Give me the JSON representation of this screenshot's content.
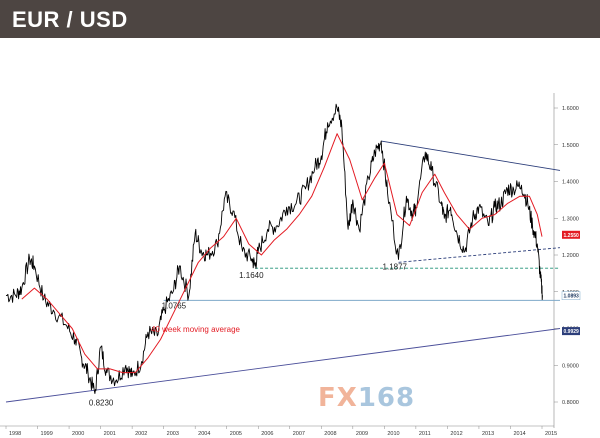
{
  "header": {
    "title": "EUR / USD"
  },
  "watermark": {
    "part1": "FX",
    "part2": "168"
  },
  "chart_data": {
    "type": "line",
    "title": "EUR / USD",
    "x_range": [
      1998,
      2015
    ],
    "y_range": [
      0.75,
      1.65
    ],
    "grid": false,
    "x_ticks": [
      "1998",
      "1999",
      "2000",
      "2001",
      "2002",
      "2003",
      "2004",
      "2005",
      "2006",
      "2007",
      "2008",
      "2009",
      "2010",
      "2011",
      "2012",
      "2013",
      "2014",
      "2015"
    ],
    "y_ticks": [
      "1.6000",
      "1.5000",
      "1.4000",
      "1.3000",
      "1.2000",
      "1.1000",
      "1.0000",
      "0.9000",
      "0.8000"
    ],
    "series": [
      {
        "role": "price",
        "color": "#000000",
        "points": [
          [
            1998.0,
            1.09
          ],
          [
            1998.3,
            1.09
          ],
          [
            1998.5,
            1.11
          ],
          [
            1998.75,
            1.19
          ],
          [
            1998.9,
            1.17
          ],
          [
            1999.2,
            1.08
          ],
          [
            1999.5,
            1.05
          ],
          [
            1999.9,
            1.01
          ],
          [
            2000.2,
            0.97
          ],
          [
            2000.4,
            0.92
          ],
          [
            2000.6,
            0.88
          ],
          [
            2000.82,
            0.823
          ],
          [
            2001.0,
            0.95
          ],
          [
            2001.2,
            0.88
          ],
          [
            2001.5,
            0.86
          ],
          [
            2001.8,
            0.9
          ],
          [
            2002.0,
            0.87
          ],
          [
            2002.3,
            0.91
          ],
          [
            2002.5,
            0.99
          ],
          [
            2002.8,
            0.98
          ],
          [
            2003.0,
            1.05
          ],
          [
            2003.3,
            1.1
          ],
          [
            2003.5,
            1.17
          ],
          [
            2003.8,
            1.09
          ],
          [
            2004.0,
            1.26
          ],
          [
            2004.2,
            1.21
          ],
          [
            2004.4,
            1.2
          ],
          [
            2004.7,
            1.23
          ],
          [
            2004.95,
            1.36
          ],
          [
            2005.2,
            1.32
          ],
          [
            2005.5,
            1.21
          ],
          [
            2005.8,
            1.19
          ],
          [
            2005.9,
            1.17
          ],
          [
            2006.0,
            1.21
          ],
          [
            2006.3,
            1.27
          ],
          [
            2006.6,
            1.28
          ],
          [
            2006.9,
            1.33
          ],
          [
            2007.2,
            1.34
          ],
          [
            2007.5,
            1.38
          ],
          [
            2007.8,
            1.44
          ],
          [
            2008.0,
            1.47
          ],
          [
            2008.2,
            1.56
          ],
          [
            2008.5,
            1.6
          ],
          [
            2008.65,
            1.55
          ],
          [
            2008.85,
            1.27
          ],
          [
            2009.0,
            1.35
          ],
          [
            2009.2,
            1.27
          ],
          [
            2009.5,
            1.41
          ],
          [
            2009.7,
            1.48
          ],
          [
            2009.9,
            1.51
          ],
          [
            2010.1,
            1.37
          ],
          [
            2010.45,
            1.1877
          ],
          [
            2010.7,
            1.36
          ],
          [
            2010.9,
            1.31
          ],
          [
            2011.0,
            1.33
          ],
          [
            2011.3,
            1.48
          ],
          [
            2011.5,
            1.43
          ],
          [
            2011.8,
            1.34
          ],
          [
            2011.9,
            1.3
          ],
          [
            2012.1,
            1.33
          ],
          [
            2012.3,
            1.26
          ],
          [
            2012.55,
            1.21
          ],
          [
            2012.8,
            1.3
          ],
          [
            2013.0,
            1.33
          ],
          [
            2013.3,
            1.28
          ],
          [
            2013.5,
            1.33
          ],
          [
            2013.7,
            1.34
          ],
          [
            2013.9,
            1.38
          ],
          [
            2014.1,
            1.38
          ],
          [
            2014.35,
            1.39
          ],
          [
            2014.55,
            1.34
          ],
          [
            2014.7,
            1.28
          ],
          [
            2014.85,
            1.23
          ],
          [
            2014.95,
            1.14
          ],
          [
            2015.02,
            1.09
          ]
        ]
      },
      {
        "role": "moving-average",
        "color": "#e31b23",
        "points": [
          [
            1998.5,
            1.08
          ],
          [
            1998.9,
            1.11
          ],
          [
            1999.3,
            1.08
          ],
          [
            1999.7,
            1.04
          ],
          [
            2000.1,
            1.0
          ],
          [
            2000.5,
            0.93
          ],
          [
            2000.9,
            0.89
          ],
          [
            2001.3,
            0.89
          ],
          [
            2001.7,
            0.88
          ],
          [
            2002.1,
            0.88
          ],
          [
            2002.5,
            0.92
          ],
          [
            2002.9,
            0.97
          ],
          [
            2003.3,
            1.04
          ],
          [
            2003.7,
            1.11
          ],
          [
            2004.1,
            1.18
          ],
          [
            2004.5,
            1.22
          ],
          [
            2004.9,
            1.25
          ],
          [
            2005.3,
            1.3
          ],
          [
            2005.7,
            1.23
          ],
          [
            2006.1,
            1.2
          ],
          [
            2006.5,
            1.24
          ],
          [
            2006.9,
            1.27
          ],
          [
            2007.3,
            1.31
          ],
          [
            2007.7,
            1.36
          ],
          [
            2008.1,
            1.44
          ],
          [
            2008.5,
            1.53
          ],
          [
            2008.9,
            1.46
          ],
          [
            2009.3,
            1.35
          ],
          [
            2009.7,
            1.41
          ],
          [
            2010.0,
            1.45
          ],
          [
            2010.4,
            1.31
          ],
          [
            2010.8,
            1.28
          ],
          [
            2011.2,
            1.37
          ],
          [
            2011.6,
            1.42
          ],
          [
            2011.9,
            1.37
          ],
          [
            2012.3,
            1.31
          ],
          [
            2012.7,
            1.27
          ],
          [
            2013.1,
            1.3
          ],
          [
            2013.5,
            1.31
          ],
          [
            2013.9,
            1.34
          ],
          [
            2014.3,
            1.36
          ],
          [
            2014.6,
            1.36
          ],
          [
            2014.85,
            1.31
          ],
          [
            2015.0,
            1.25
          ]
        ]
      }
    ],
    "trendlines": [
      {
        "name": "upper-resistance",
        "style": "solid",
        "color": "#2c3e7a",
        "from": [
          2009.9,
          1.51
        ],
        "to": [
          2015.6,
          1.43
        ]
      },
      {
        "name": "mid-support",
        "style": "dashed",
        "color": "#2c3e7a",
        "from": [
          2010.45,
          1.18
        ],
        "to": [
          2015.6,
          1.22
        ]
      },
      {
        "name": "horizontal-support",
        "style": "dashed",
        "color": "#1a8f74",
        "from": [
          2005.9,
          1.164
        ],
        "to": [
          2015.6,
          1.164
        ]
      },
      {
        "name": "horizontal-1.0765",
        "style": "solid",
        "color": "#7fa9c9",
        "from": [
          2003.0,
          1.0765
        ],
        "to": [
          2015.6,
          1.0765
        ]
      },
      {
        "name": "long-term-support",
        "style": "solid",
        "color": "#4b4f9a",
        "from": [
          1998.0,
          0.8
        ],
        "to": [
          2015.6,
          1.0
        ]
      }
    ],
    "annotations": [
      {
        "text": "0.8230",
        "x": 2000.82,
        "y": 0.823
      },
      {
        "text": "1.0765",
        "x": 2003.0,
        "y": 1.0765
      },
      {
        "text": "1.1640",
        "x": 2005.9,
        "y": 1.164
      },
      {
        "text": "1.1877",
        "x": 2010.45,
        "y": 1.1877
      },
      {
        "text": "40 week moving average",
        "x": 2002.6,
        "y": 0.99
      }
    ],
    "price_labels": [
      {
        "text": "1.2550",
        "y": 1.255,
        "color": "#e31b23"
      },
      {
        "text": "1.0893",
        "y": 1.0893,
        "color": "#ffffff"
      },
      {
        "text": "0.9929",
        "y": 0.9929,
        "color": "#2c3e7a"
      }
    ]
  }
}
